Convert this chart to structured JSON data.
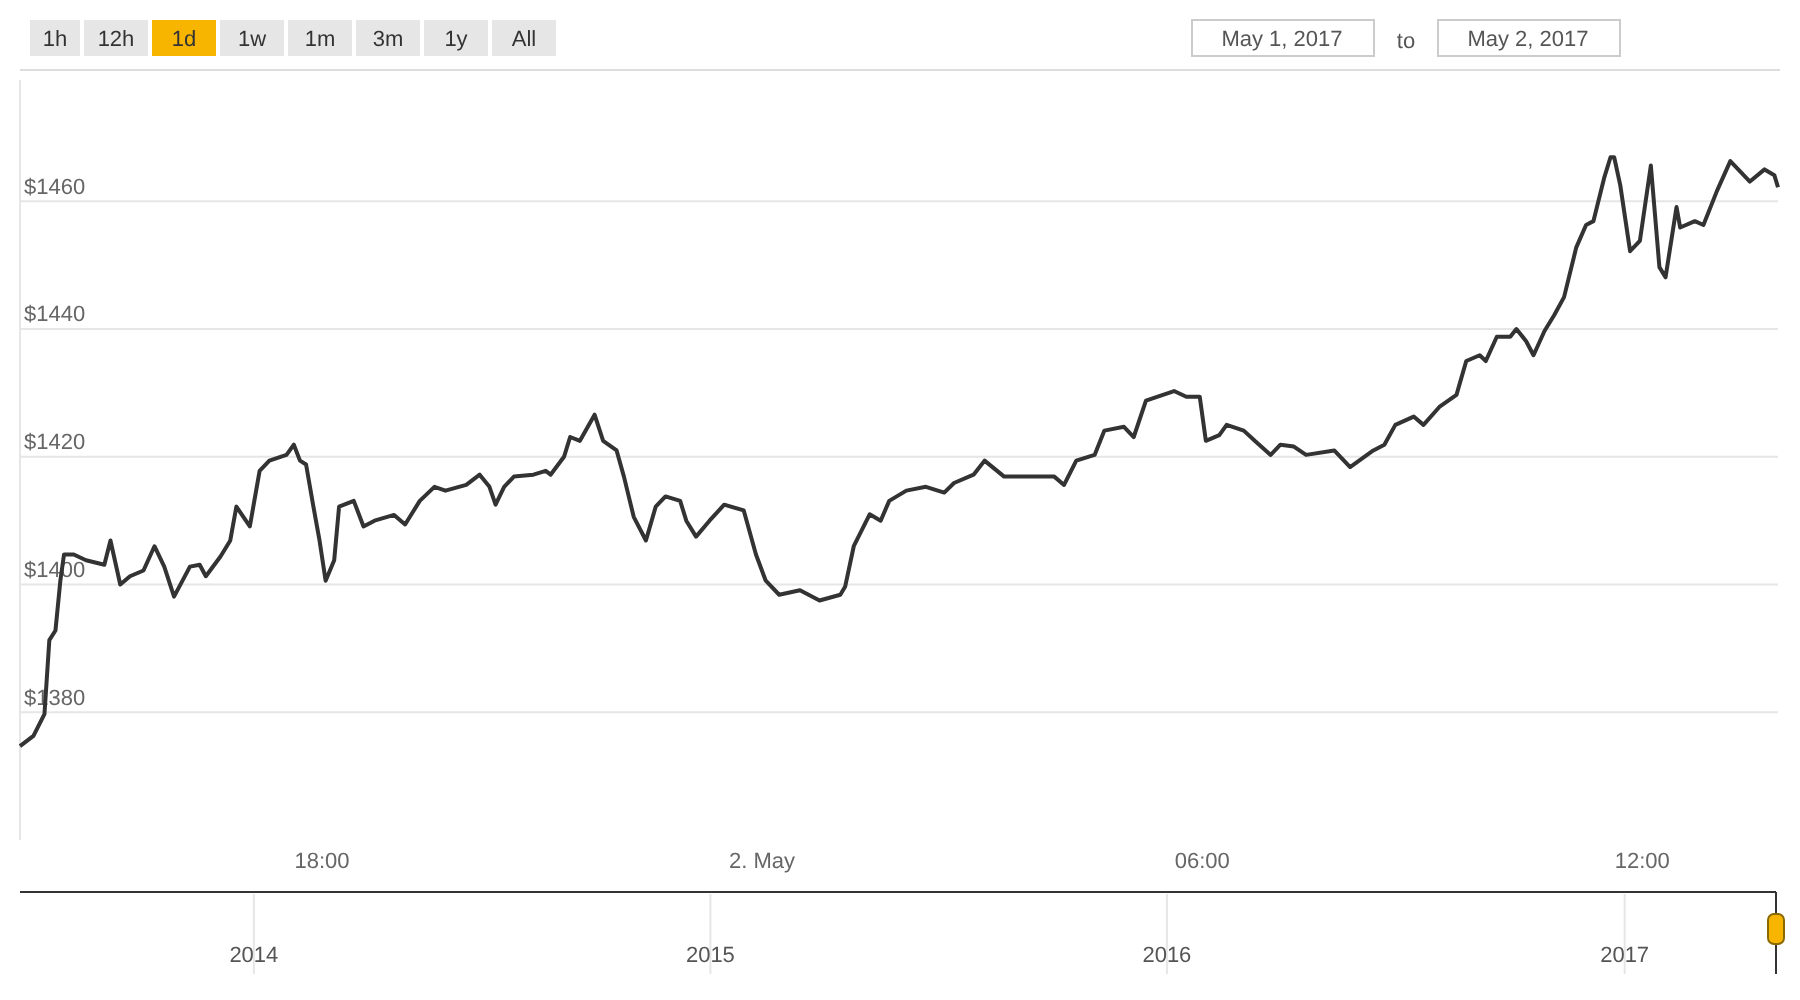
{
  "chart_data": [
    {
      "type": "other",
      "annotations": [
        "1h",
        "12h",
        "1d",
        "1w",
        "1m",
        "3m",
        "1y",
        "All",
        "May 1, 2017",
        "to",
        "May 2, 2017"
      ]
    },
    {
      "type": "line",
      "color": "#333333",
      "grid": "y",
      "marker": "none",
      "line_style": "solid",
      "xlim": [
        "2017-05-01T13:53",
        "2017-05-02T13:51"
      ],
      "ylim": [
        1360,
        1479
      ],
      "x2lim": [
        "2013-06-28",
        "2017-05-02"
      ],
      "x2ticks": [
        "2014",
        "2015",
        "2016",
        "2017"
      ],
      "xticks": [
        {
          "value": "2017-05-01T18:00",
          "label": "18:00"
        },
        {
          "value": "2017-05-02T00:00",
          "label": "2. May"
        },
        {
          "value": "2017-05-02T06:00",
          "label": "06:00"
        },
        {
          "value": "2017-05-02T12:00",
          "label": "12:00"
        }
      ],
      "yticks": [
        {
          "value": 1380,
          "label": "$1380"
        },
        {
          "value": 1400,
          "label": "$1400"
        },
        {
          "value": 1420,
          "label": "$1420"
        },
        {
          "value": 1440,
          "label": "$1440"
        },
        {
          "value": 1460,
          "label": "$1460"
        }
      ],
      "x": [
        "2017-05-01T13:53",
        "2017-05-01T14:04",
        "2017-05-01T14:13",
        "2017-05-01T14:17",
        "2017-05-01T14:22",
        "2017-05-01T14:26",
        "2017-05-01T14:29",
        "2017-05-01T14:37",
        "2017-05-01T14:47",
        "2017-05-01T15:02",
        "2017-05-01T15:07",
        "2017-05-01T15:15",
        "2017-05-01T15:23",
        "2017-05-01T15:34",
        "2017-05-01T15:43",
        "2017-05-01T15:51",
        "2017-05-01T15:59",
        "2017-05-01T16:12",
        "2017-05-01T16:20",
        "2017-05-01T16:25",
        "2017-05-01T16:37",
        "2017-05-01T16:45",
        "2017-05-01T16:50",
        "2017-05-01T17:01",
        "2017-05-01T17:09",
        "2017-05-01T17:17",
        "2017-05-01T17:31",
        "2017-05-01T17:37",
        "2017-05-01T17:42",
        "2017-05-01T17:47",
        "2017-05-01T17:53",
        "2017-05-01T17:58",
        "2017-05-01T18:03",
        "2017-05-01T18:10",
        "2017-05-01T18:14",
        "2017-05-01T18:26",
        "2017-05-01T18:34",
        "2017-05-01T18:43",
        "2017-05-01T18:59",
        "2017-05-01T19:08",
        "2017-05-01T19:20",
        "2017-05-01T19:32",
        "2017-05-01T19:41",
        "2017-05-01T19:58",
        "2017-05-01T20:09",
        "2017-05-01T20:17",
        "2017-05-01T20:22",
        "2017-05-01T20:29",
        "2017-05-01T20:37",
        "2017-05-01T20:53",
        "2017-05-01T21:03",
        "2017-05-01T21:07",
        "2017-05-01T21:18",
        "2017-05-01T21:23",
        "2017-05-01T21:31",
        "2017-05-01T21:43",
        "2017-05-01T21:50",
        "2017-05-01T22:01",
        "2017-05-01T22:07",
        "2017-05-01T22:15",
        "2017-05-01T22:25",
        "2017-05-01T22:33",
        "2017-05-01T22:41",
        "2017-05-01T22:53",
        "2017-05-01T22:58",
        "2017-05-01T23:06",
        "2017-05-01T23:17",
        "2017-05-01T23:29",
        "2017-05-01T23:45",
        "2017-05-01T23:55",
        "2017-05-02T00:03",
        "2017-05-02T00:14",
        "2017-05-02T00:31",
        "2017-05-02T00:47",
        "2017-05-02T01:04",
        "2017-05-02T01:08",
        "2017-05-02T01:15",
        "2017-05-02T01:28",
        "2017-05-02T01:37",
        "2017-05-02T01:44",
        "2017-05-02T01:58",
        "2017-05-02T02:14",
        "2017-05-02T02:29",
        "2017-05-02T02:37",
        "2017-05-02T02:53",
        "2017-05-02T03:02",
        "2017-05-02T03:18",
        "2017-05-02T03:43",
        "2017-05-02T03:59",
        "2017-05-02T04:07",
        "2017-05-02T04:17",
        "2017-05-02T04:32",
        "2017-05-02T04:40",
        "2017-05-02T04:56",
        "2017-05-02T05:04",
        "2017-05-02T05:14",
        "2017-05-02T05:37",
        "2017-05-02T05:47",
        "2017-05-02T05:58",
        "2017-05-02T06:03",
        "2017-05-02T06:14",
        "2017-05-02T06:20",
        "2017-05-02T06:34",
        "2017-05-02T06:43",
        "2017-05-02T06:56",
        "2017-05-02T07:04",
        "2017-05-02T07:15",
        "2017-05-02T07:25",
        "2017-05-02T07:48",
        "2017-05-02T08:01",
        "2017-05-02T08:20",
        "2017-05-02T08:29",
        "2017-05-02T08:38",
        "2017-05-02T08:53",
        "2017-05-02T09:01",
        "2017-05-02T09:14",
        "2017-05-02T09:28",
        "2017-05-02T09:36",
        "2017-05-02T09:47",
        "2017-05-02T09:52",
        "2017-05-02T10:01",
        "2017-05-02T10:12",
        "2017-05-02T10:17",
        "2017-05-02T10:25",
        "2017-05-02T10:31",
        "2017-05-02T10:40",
        "2017-05-02T10:48",
        "2017-05-02T10:56",
        "2017-05-02T11:06",
        "2017-05-02T11:14",
        "2017-05-02T11:20",
        "2017-05-02T11:29",
        "2017-05-02T11:34",
        "2017-05-02T11:37",
        "2017-05-02T11:42",
        "2017-05-02T11:50",
        "2017-05-02T11:58",
        "2017-05-02T12:07",
        "2017-05-02T12:14",
        "2017-05-02T12:19",
        "2017-05-02T12:28",
        "2017-05-02T12:31",
        "2017-05-02T12:43",
        "2017-05-02T12:50",
        "2017-05-02T13:01",
        "2017-05-02T13:12",
        "2017-05-02T13:28",
        "2017-05-02T13:40",
        "2017-05-02T13:48",
        "2017-05-02T13:51"
      ],
      "values": [
        1374.7,
        1376.3,
        1379.7,
        1391.3,
        1392.8,
        1400.6,
        1404.7,
        1404.7,
        1403.8,
        1403.1,
        1406.9,
        1400.0,
        1401.3,
        1402.2,
        1406.0,
        1402.8,
        1398.1,
        1402.8,
        1403.1,
        1401.3,
        1404.4,
        1406.9,
        1412.2,
        1409.1,
        1417.8,
        1419.4,
        1420.3,
        1421.9,
        1419.4,
        1418.8,
        1412.2,
        1406.9,
        1400.6,
        1403.8,
        1412.2,
        1413.1,
        1409.1,
        1410.0,
        1410.9,
        1409.4,
        1413.1,
        1415.3,
        1414.7,
        1415.6,
        1417.2,
        1415.3,
        1412.5,
        1415.3,
        1416.9,
        1417.2,
        1417.8,
        1417.2,
        1420.0,
        1423.1,
        1422.5,
        1426.6,
        1422.5,
        1421.0,
        1416.9,
        1410.6,
        1406.9,
        1412.2,
        1413.8,
        1413.1,
        1410.0,
        1407.5,
        1410.0,
        1412.5,
        1411.6,
        1404.7,
        1400.6,
        1398.4,
        1399.1,
        1397.5,
        1398.4,
        1399.7,
        1406.0,
        1411.0,
        1410.0,
        1413.1,
        1414.7,
        1415.3,
        1414.4,
        1415.9,
        1417.2,
        1419.4,
        1416.9,
        1416.9,
        1416.9,
        1415.6,
        1419.4,
        1420.3,
        1424.1,
        1424.7,
        1423.1,
        1428.8,
        1430.3,
        1429.4,
        1429.4,
        1422.5,
        1423.4,
        1425.0,
        1424.1,
        1422.5,
        1420.3,
        1421.9,
        1421.6,
        1420.3,
        1421.0,
        1418.4,
        1421.0,
        1421.9,
        1425.0,
        1426.3,
        1425.0,
        1427.8,
        1429.7,
        1435.0,
        1435.9,
        1435.0,
        1438.8,
        1438.8,
        1440.0,
        1438.1,
        1435.9,
        1439.7,
        1442.2,
        1445.0,
        1452.8,
        1456.3,
        1456.9,
        1463.8,
        1466.9,
        1466.9,
        1462.5,
        1452.2,
        1453.8,
        1465.6,
        1449.7,
        1448.1,
        1459.1,
        1455.9,
        1456.9,
        1456.3,
        1461.6,
        1466.3,
        1463.1,
        1465.0,
        1464.1,
        1462.2
      ]
    }
  ]
}
